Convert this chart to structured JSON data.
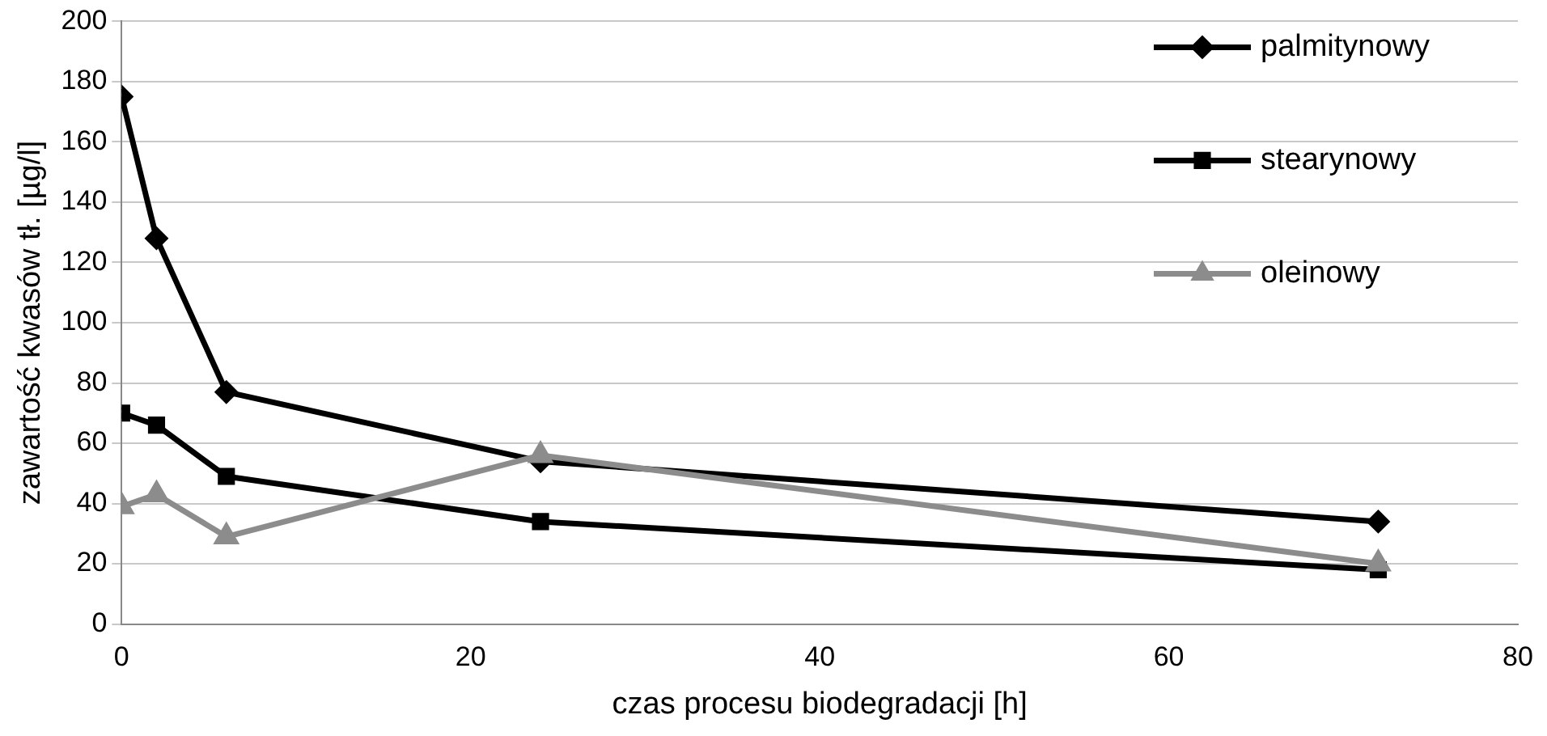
{
  "chart_data": {
    "type": "line",
    "xlabel": "czas procesu biodegradacji [h]",
    "ylabel": "zawartość kwasów tł. [µg/l]",
    "x": [
      0,
      2,
      6,
      24,
      72
    ],
    "series": [
      {
        "name": "palmitynowy",
        "color": "#000000",
        "marker": "diamond",
        "values": [
          175,
          128,
          77,
          54,
          34
        ]
      },
      {
        "name": "stearynowy",
        "color": "#000000",
        "marker": "square",
        "values": [
          70,
          66,
          49,
          34,
          18
        ]
      },
      {
        "name": "oleinowy",
        "color": "#8c8c8c",
        "marker": "triangle",
        "values": [
          39,
          43,
          29,
          56,
          20
        ]
      }
    ],
    "xlim": [
      0,
      80
    ],
    "xticks": [
      0,
      20,
      40,
      60,
      80
    ],
    "ylim": [
      0,
      200
    ],
    "yticks": [
      0,
      20,
      40,
      60,
      80,
      100,
      120,
      140,
      160,
      180,
      200
    ],
    "grid": "y",
    "legend": "top right",
    "line_style": "solid"
  }
}
